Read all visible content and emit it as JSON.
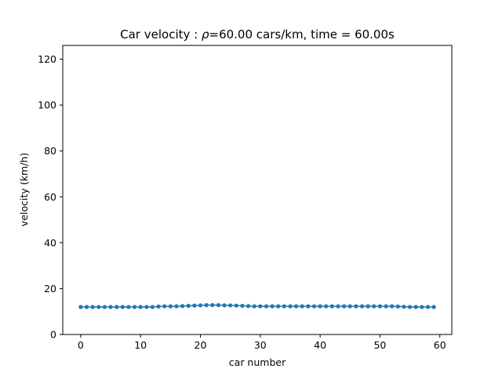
{
  "chart_data": {
    "type": "line",
    "title_prefix": "Car velocity : ",
    "title_rho": "ρ",
    "title_suffix": "=60.00 cars/km, time = 60.00s",
    "xlabel": "car number",
    "ylabel": "velocity (km/h)",
    "xlim": [
      -3,
      62
    ],
    "ylim": [
      0,
      126
    ],
    "xticks": [
      0,
      10,
      20,
      30,
      40,
      50,
      60
    ],
    "yticks": [
      0,
      20,
      40,
      60,
      80,
      100,
      120
    ],
    "grid": false,
    "color": "#1f77b4",
    "series": [
      {
        "x": [
          0,
          1,
          2,
          3,
          4,
          5,
          6,
          7,
          8,
          9,
          10,
          11,
          12,
          13,
          14,
          15,
          16,
          17,
          18,
          19,
          20,
          21,
          22,
          23,
          24,
          25,
          26,
          27,
          28,
          29,
          30,
          31,
          32,
          33,
          34,
          35,
          36,
          37,
          38,
          39,
          40,
          41,
          42,
          43,
          44,
          45,
          46,
          47,
          48,
          49,
          50,
          51,
          52,
          53,
          54,
          55,
          56,
          57,
          58,
          59
        ],
        "values": [
          12.0,
          12.0,
          12.0,
          12.0,
          12.0,
          12.0,
          12.0,
          12.0,
          12.0,
          12.0,
          12.0,
          12.0,
          12.0,
          12.2,
          12.3,
          12.3,
          12.3,
          12.4,
          12.5,
          12.6,
          12.7,
          12.8,
          12.8,
          12.8,
          12.7,
          12.7,
          12.6,
          12.5,
          12.4,
          12.3,
          12.3,
          12.3,
          12.3,
          12.3,
          12.3,
          12.3,
          12.3,
          12.3,
          12.3,
          12.3,
          12.3,
          12.3,
          12.3,
          12.3,
          12.3,
          12.3,
          12.3,
          12.3,
          12.3,
          12.3,
          12.3,
          12.3,
          12.3,
          12.2,
          12.1,
          12.0,
          12.0,
          12.0,
          12.0,
          12.0
        ]
      }
    ]
  }
}
